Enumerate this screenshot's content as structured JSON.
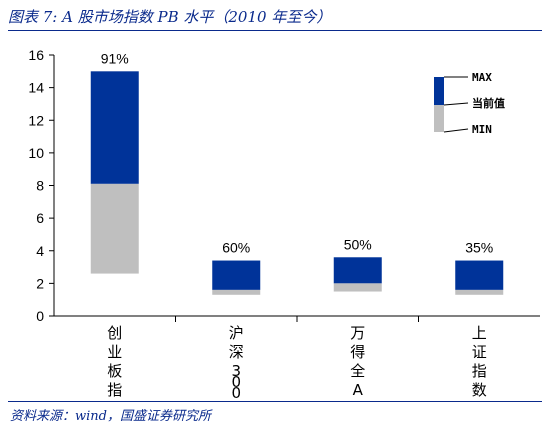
{
  "figure": {
    "title": "图表 7:  A 股市场指数 PB 水平（2010 年至今）",
    "source": "资料来源：wind，国盛证券研究所"
  },
  "colors": {
    "max_segment": "#003399",
    "min_segment": "#bfbfbf",
    "axis": "#000000"
  },
  "chart_data": {
    "type": "bar",
    "categories": [
      "创业板指",
      "沪深300",
      "万得全A",
      "上证指数"
    ],
    "series": [
      {
        "name": "MAX",
        "values": [
          15.0,
          3.4,
          3.6,
          3.4
        ]
      },
      {
        "name": "当前值",
        "values": [
          8.1,
          1.6,
          2.0,
          1.6
        ]
      },
      {
        "name": "MIN",
        "values": [
          2.6,
          1.3,
          1.5,
          1.3
        ]
      }
    ],
    "data_labels": [
      "91%",
      "60%",
      "50%",
      "35%"
    ],
    "yticks": [
      0,
      2,
      4,
      6,
      8,
      10,
      12,
      14,
      16
    ],
    "ylim": [
      0,
      16
    ],
    "legend_position": "top-right",
    "legend": {
      "max": "MAX",
      "current": "当前值",
      "min": "MIN"
    }
  }
}
